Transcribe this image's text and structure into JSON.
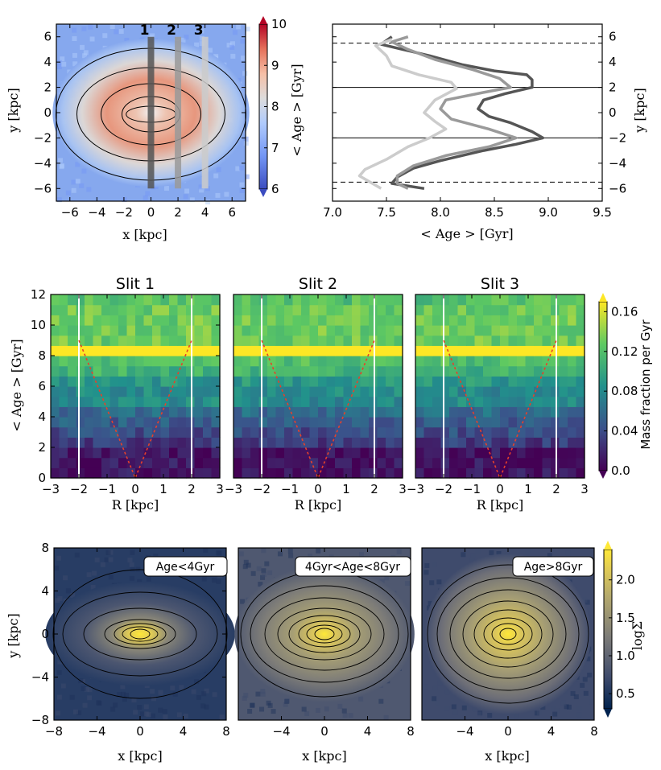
{
  "colors": {
    "coolwarm": [
      "#3b4cc0",
      "#7396f5",
      "#b0cbfc",
      "#dddcdc",
      "#f6bfa6",
      "#e5705a",
      "#b40426"
    ],
    "viridis": [
      "#440154",
      "#3b528b",
      "#21918c",
      "#5ec962",
      "#fde725"
    ],
    "cividis": [
      "#00224e",
      "#3f4b6c",
      "#7d7c78",
      "#b3a86e",
      "#e1cc55",
      "#fee838"
    ],
    "slit_lines": [
      "#555555",
      "#9a9a9a",
      "#cccccc"
    ],
    "diag_line": "#e8402a"
  },
  "chart_data": [
    {
      "id": "age_map",
      "type": "heatmap",
      "xlabel": "x [kpc]",
      "ylabel": "y [kpc]",
      "xlim": [
        -7,
        7
      ],
      "ylim": [
        -7,
        7
      ],
      "xticks": [
        -6,
        -4,
        -2,
        0,
        2,
        4,
        6
      ],
      "yticks": [
        -6,
        -4,
        -2,
        0,
        2,
        4,
        6
      ],
      "xtick_labels": [
        "−6",
        "−4",
        "−2",
        "0",
        "2",
        "4",
        "6"
      ],
      "ytick_labels": [
        "−6",
        "−4",
        "−2",
        "0",
        "2",
        "4",
        "6"
      ],
      "slits": [
        {
          "label": "1",
          "x": 0,
          "y_range": [
            -6,
            6
          ]
        },
        {
          "label": "2",
          "x": 2,
          "y_range": [
            -6,
            6
          ]
        },
        {
          "label": "3",
          "x": 4,
          "y_range": [
            -6,
            6
          ]
        }
      ],
      "colorbar": {
        "label": "< Age > [Gyr]",
        "range": [
          6,
          10
        ],
        "ticks": [
          "6",
          "7",
          "8",
          "9",
          "10"
        ],
        "tick_values": [
          6,
          7,
          8,
          9,
          10
        ]
      }
    },
    {
      "id": "age_profiles",
      "type": "line",
      "xlabel": "< Age > [Gyr]",
      "ylabel": "y [kpc]",
      "xlim": [
        7,
        9.5
      ],
      "ylim": [
        -7,
        7
      ],
      "xticks": [
        7.0,
        7.5,
        8.0,
        8.5,
        9.0,
        9.5
      ],
      "xtick_labels": [
        "7.0",
        "7.5",
        "8.0",
        "8.5",
        "9.0",
        "9.5"
      ],
      "yticks": [
        -6,
        -4,
        -2,
        0,
        2,
        4,
        6
      ],
      "ytick_labels": [
        "−6",
        "−4",
        "−2",
        "0",
        "2",
        "4",
        "6"
      ],
      "hlines_solid": [
        2,
        -2
      ],
      "hlines_dashed": [
        5.5,
        -5.5
      ],
      "series": [
        {
          "color_index": 0,
          "points": [
            [
              7.55,
              6
            ],
            [
              7.45,
              5.4
            ],
            [
              7.65,
              5
            ],
            [
              7.9,
              4.5
            ],
            [
              8.2,
              3.8
            ],
            [
              8.5,
              3.3
            ],
            [
              8.8,
              3
            ],
            [
              8.85,
              2.6
            ],
            [
              8.85,
              2
            ],
            [
              8.6,
              1.5
            ],
            [
              8.4,
              1
            ],
            [
              8.35,
              0.3
            ],
            [
              8.45,
              -0.3
            ],
            [
              8.65,
              -0.8
            ],
            [
              8.85,
              -1.5
            ],
            [
              8.95,
              -2
            ],
            [
              8.7,
              -2.5
            ],
            [
              8.4,
              -3
            ],
            [
              8.0,
              -3.8
            ],
            [
              7.75,
              -4.4
            ],
            [
              7.6,
              -5.1
            ],
            [
              7.55,
              -5.6
            ],
            [
              7.85,
              -6
            ]
          ]
        },
        {
          "color_index": 1,
          "points": [
            [
              7.7,
              6
            ],
            [
              7.55,
              5.6
            ],
            [
              7.7,
              5
            ],
            [
              7.95,
              4.2
            ],
            [
              8.3,
              3.4
            ],
            [
              8.55,
              2.7
            ],
            [
              8.65,
              2
            ],
            [
              8.4,
              1.6
            ],
            [
              8.05,
              1
            ],
            [
              8.0,
              0.3
            ],
            [
              8.1,
              -0.5
            ],
            [
              8.45,
              -1.3
            ],
            [
              8.7,
              -2
            ],
            [
              8.45,
              -2.7
            ],
            [
              8.05,
              -3.4
            ],
            [
              7.75,
              -4.2
            ],
            [
              7.6,
              -5
            ],
            [
              7.6,
              -5.6
            ],
            [
              7.7,
              -6
            ]
          ]
        },
        {
          "color_index": 2,
          "points": [
            [
              7.55,
              5.8
            ],
            [
              7.4,
              5.3
            ],
            [
              7.5,
              4.5
            ],
            [
              7.55,
              3.7
            ],
            [
              7.8,
              3
            ],
            [
              8.1,
              2.4
            ],
            [
              8.15,
              1.9
            ],
            [
              7.95,
              1
            ],
            [
              7.85,
              0
            ],
            [
              7.95,
              -0.7
            ],
            [
              8.05,
              -1.3
            ],
            [
              7.9,
              -2
            ],
            [
              7.7,
              -2.7
            ],
            [
              7.5,
              -3.7
            ],
            [
              7.3,
              -4.5
            ],
            [
              7.25,
              -5
            ],
            [
              7.45,
              -6
            ]
          ]
        }
      ]
    },
    {
      "id": "slit_histograms",
      "type": "heatmap",
      "titles": [
        "Slit 1",
        "Slit 2",
        "Slit 3"
      ],
      "xlabel": "R [kpc]",
      "ylabel": "< Age > [Gyr]",
      "xlim": [
        -3,
        3
      ],
      "ylim": [
        0,
        12
      ],
      "xticks": [
        -3,
        -2,
        -1,
        0,
        1,
        2,
        3
      ],
      "xtick_labels": [
        "−3",
        "−2",
        "−1",
        "0",
        "1",
        "2",
        "3"
      ],
      "yticks": [
        0,
        2,
        4,
        6,
        8,
        10,
        12
      ],
      "ytick_labels": [
        "0",
        "2",
        "4",
        "6",
        "8",
        "10",
        "12"
      ],
      "vlines": [
        -2,
        2
      ],
      "diagonal": [
        [
          -2,
          9
        ],
        [
          0,
          0
        ],
        [
          2,
          9
        ]
      ],
      "row_fraction": [
        0.01,
        0.01,
        0.01,
        0.03,
        0.04,
        0.05,
        0.06,
        0.08,
        0.08,
        0.09,
        0.11,
        0.12,
        0.17,
        0.13,
        0.13,
        0.13,
        0.13,
        0.12
      ],
      "colorbar": {
        "label": "Mass fraction per Gyr",
        "range": [
          0,
          0.17
        ],
        "ticks": [
          "0.0",
          "0.04",
          "0.08",
          "0.12",
          "0.16"
        ],
        "tick_values": [
          0,
          0.04,
          0.08,
          0.12,
          0.16
        ]
      }
    },
    {
      "id": "density_maps",
      "type": "heatmap",
      "labels": [
        "Age<4Gyr",
        "4Gyr<Age<8Gyr",
        "Age>8Gyr"
      ],
      "xlabel": "x [kpc]",
      "ylabel": "y [kpc]",
      "xlim": [
        -8,
        8
      ],
      "ylim": [
        -8,
        8
      ],
      "xticks_first": [
        -8,
        -4,
        0,
        4,
        8
      ],
      "xtick_labels_first": [
        "−8",
        "−4",
        "0",
        "4",
        "8"
      ],
      "xticks_other": [
        -4,
        0,
        4,
        8
      ],
      "xtick_labels_other": [
        "−4",
        "0",
        "4",
        "8"
      ],
      "yticks": [
        -8,
        -4,
        0,
        4,
        8
      ],
      "ytick_labels": [
        "−8",
        "−4",
        "0",
        "4",
        "8"
      ],
      "colorbar": {
        "label": "logΣ",
        "range": [
          0.3,
          2.4
        ],
        "ticks": [
          "0.5",
          "1.0",
          "1.5",
          "2.0"
        ],
        "tick_values": [
          0.5,
          1.0,
          1.5,
          2.0
        ]
      }
    }
  ]
}
